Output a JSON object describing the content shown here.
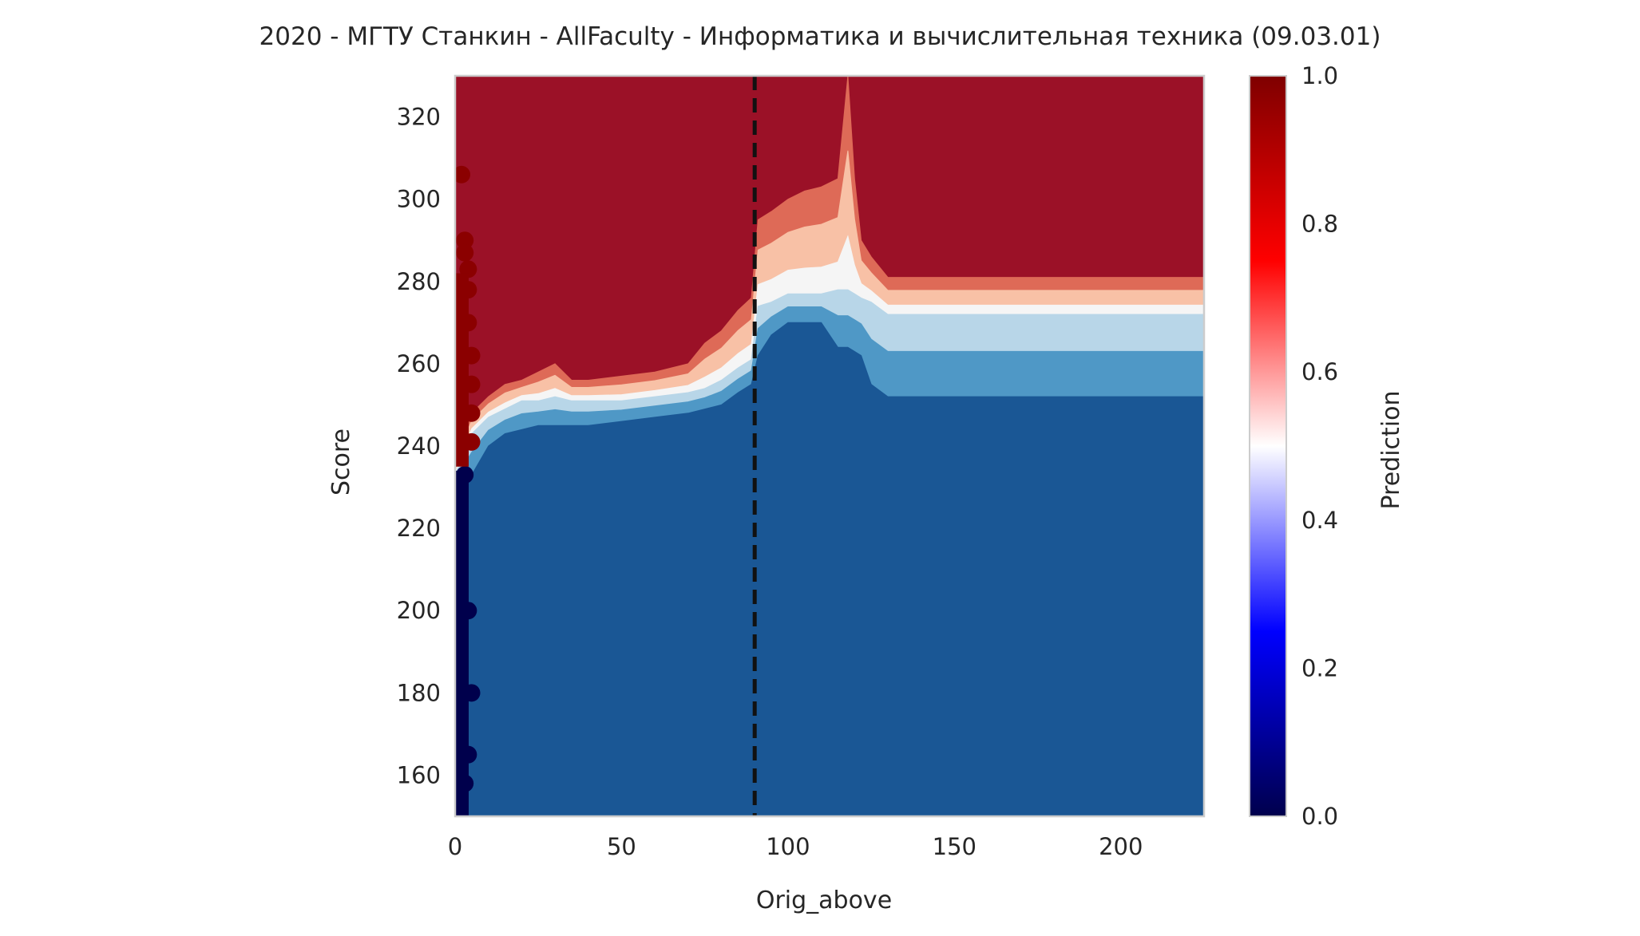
{
  "chart_data": {
    "type": "heatmap",
    "title": "2020 - МГТУ Станкин - AllFaculty - Информатика и вычислительная техника (09.03.01)",
    "xlabel": "Orig_above",
    "ylabel": "Score",
    "xlim": [
      0,
      225
    ],
    "ylim": [
      150,
      330
    ],
    "xticks": [
      0,
      50,
      100,
      150,
      200
    ],
    "yticks": [
      160,
      180,
      200,
      220,
      240,
      260,
      280,
      300,
      320
    ],
    "grid": false,
    "colorbar": {
      "label": "Prediction",
      "colormap": "seismic",
      "range": [
        0,
        1
      ],
      "ticks": [
        "0.0",
        "0.2",
        "0.4",
        "0.6",
        "0.8",
        "1.0"
      ]
    },
    "contour_levels": [
      {
        "level": "0.9-1.0",
        "color": "#9b1127"
      },
      {
        "level": "0.8-0.9",
        "color": "#de6a57"
      },
      {
        "level": "0.7-0.8",
        "color": "#f8c1a6"
      },
      {
        "level": "0.5-0.7",
        "color": "#f5f5f5"
      },
      {
        "level": "0.3-0.5",
        "color": "#b8d6e8"
      },
      {
        "level": "0.1-0.3",
        "color": "#4f98c6"
      },
      {
        "level": "0.0-0.1",
        "color": "#1a5795"
      }
    ],
    "threshold_boundaries": {
      "x": [
        0,
        3,
        5,
        10,
        15,
        20,
        25,
        30,
        35,
        40,
        50,
        60,
        70,
        75,
        80,
        85,
        89,
        91,
        95,
        100,
        105,
        110,
        115,
        118,
        120,
        122,
        125,
        130,
        140,
        160,
        180,
        200,
        225
      ],
      "upper": [
        235,
        244,
        248,
        252,
        255,
        256,
        258,
        260,
        256,
        256,
        257,
        258,
        260,
        265,
        268,
        273,
        276,
        295,
        297,
        300,
        302,
        303,
        305,
        330,
        305,
        290,
        286,
        281,
        281,
        281,
        281,
        281,
        281
      ],
      "mid": [
        233,
        239,
        243,
        247,
        249,
        251,
        251,
        252,
        251,
        251,
        251,
        252,
        253,
        254,
        256,
        259,
        261,
        274,
        275,
        277,
        277,
        277,
        278,
        278,
        277,
        276,
        275,
        272,
        272,
        272,
        272,
        272,
        272
      ],
      "lower": [
        231,
        232,
        233,
        240,
        243,
        244,
        245,
        245,
        245,
        245,
        246,
        247,
        248,
        249,
        250,
        253,
        255,
        262,
        267,
        270,
        270,
        270,
        264,
        264,
        263,
        262,
        255,
        252,
        252,
        252,
        252,
        252,
        252
      ]
    },
    "reference_line": {
      "x": 90,
      "style": "dashed",
      "color": "#111111"
    },
    "scatter_points": {
      "x": [
        0,
        1,
        1,
        2,
        2,
        2,
        3,
        3,
        3,
        3,
        1,
        2,
        3,
        2,
        1
      ],
      "y": [
        306,
        290,
        287,
        283,
        278,
        270,
        262,
        255,
        248,
        241,
        233,
        200,
        180,
        165,
        158
      ],
      "prediction": [
        1,
        1,
        1,
        1,
        1,
        1,
        1,
        1,
        1,
        1,
        0,
        0,
        0,
        0,
        0
      ]
    }
  }
}
